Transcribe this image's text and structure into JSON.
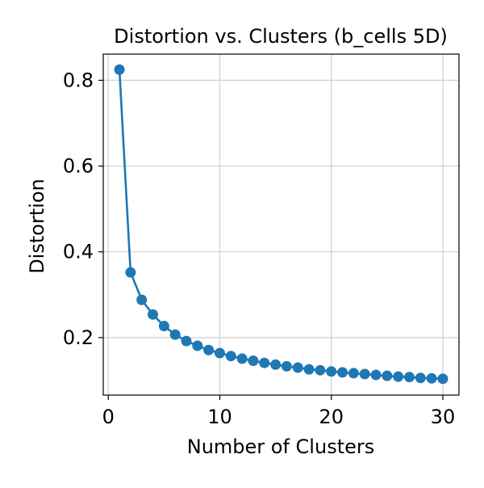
{
  "chart_data": {
    "type": "line",
    "title": "Distortion vs. Clusters (b_cells 5D)",
    "xlabel": "Number of Clusters",
    "ylabel": "Distortion",
    "xlim": [
      -0.45,
      31.45
    ],
    "ylim": [
      0.066,
      0.861
    ],
    "xticks": [
      0,
      10,
      20,
      30
    ],
    "xtick_labels": [
      "0",
      "10",
      "20",
      "30"
    ],
    "yticks": [
      0.2,
      0.4,
      0.6,
      0.8
    ],
    "ytick_labels": [
      "0.2",
      "0.4",
      "0.6",
      "0.8"
    ],
    "grid": true,
    "series": [
      {
        "color": "#1f77b4",
        "marker": "circle",
        "x": [
          1,
          2,
          3,
          4,
          5,
          6,
          7,
          8,
          9,
          10,
          11,
          12,
          13,
          14,
          15,
          16,
          17,
          18,
          19,
          20,
          21,
          22,
          23,
          24,
          25,
          26,
          27,
          28,
          29,
          30
        ],
        "values": [
          0.825,
          0.352,
          0.288,
          0.254,
          0.227,
          0.207,
          0.192,
          0.181,
          0.171,
          0.164,
          0.157,
          0.151,
          0.146,
          0.141,
          0.137,
          0.133,
          0.13,
          0.126,
          0.124,
          0.121,
          0.119,
          0.117,
          0.115,
          0.113,
          0.111,
          0.109,
          0.108,
          0.106,
          0.105,
          0.104
        ]
      }
    ]
  }
}
